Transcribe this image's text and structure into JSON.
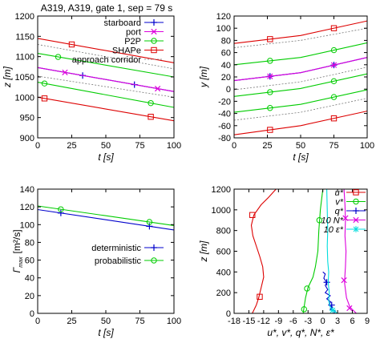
{
  "figure_title": "A319, A319, gate 1, sep = 79 s",
  "chart_data": [
    {
      "id": "tl",
      "type": "line",
      "xlim": [
        0,
        100
      ],
      "ylim": [
        900,
        1200
      ],
      "xticks": [
        0,
        25,
        50,
        75,
        100
      ],
      "xtick_labels": [
        "0",
        "25",
        "50",
        "75",
        "100"
      ],
      "yticks": [
        900,
        950,
        1000,
        1050,
        1100,
        1150,
        1200
      ],
      "ytick_labels": [
        "900",
        "950",
        "1000",
        "1050",
        "1100",
        "1150",
        "1200"
      ],
      "xlabel": "t  [s]",
      "ylabel": "z  [m]",
      "grid": false,
      "legend_position": "top-right",
      "series": [
        {
          "name": "starboard",
          "color": "#0000cc",
          "marker": "plus",
          "x": [
            0,
            100
          ],
          "y": [
            1073,
            1014
          ],
          "marker_x": [
            33,
            71
          ]
        },
        {
          "name": "port",
          "color": "#dd00dd",
          "marker": "cross",
          "x": [
            0,
            100
          ],
          "y": [
            1073,
            1014
          ],
          "marker_x": [
            20,
            88
          ]
        },
        {
          "name": "P2P",
          "color": "#00cc00",
          "marker": "circle",
          "x": [
            0,
            100
          ],
          "y": [
            1037,
            975
          ],
          "marker_x": [
            5,
            83
          ]
        },
        {
          "name": "SHAPe",
          "color": "#dd0000",
          "marker": "square",
          "x": [
            0,
            100
          ],
          "y": [
            1000,
            942
          ],
          "marker_x": [
            5,
            83
          ]
        },
        {
          "name": "approach corridor",
          "color": "#777777",
          "dash": true,
          "x": [
            0,
            100
          ],
          "y": [
            1130,
            1070
          ],
          "marker_x": []
        },
        {
          "color": "#dd0000",
          "marker": "square",
          "x": [
            0,
            100
          ],
          "y": [
            1145,
            1085
          ],
          "marker_x": [
            25
          ]
        },
        {
          "color": "#00cc00",
          "marker": "circle",
          "x": [
            0,
            100
          ],
          "y": [
            1108,
            1050
          ],
          "marker_x": [
            15
          ]
        },
        {
          "color": "#777777",
          "dash": true,
          "x": [
            0,
            100
          ],
          "y": [
            1052,
            1000
          ],
          "marker_x": []
        }
      ]
    },
    {
      "id": "tr",
      "type": "line",
      "xlim": [
        0,
        100
      ],
      "ylim": [
        -80,
        120
      ],
      "xticks": [
        0,
        25,
        50,
        75,
        100
      ],
      "xtick_labels": [
        "0",
        "25",
        "50",
        "75",
        "100"
      ],
      "yticks": [
        -80,
        -60,
        -40,
        -20,
        0,
        20,
        40,
        60,
        80,
        100,
        120
      ],
      "ytick_labels": [
        "-80",
        "-60",
        "-40",
        "-20",
        "0",
        "20",
        "40",
        "60",
        "80",
        "100",
        "120"
      ],
      "xlabel": "t  [s]",
      "ylabel": "y  [m]",
      "grid": false,
      "series": [
        {
          "color": "#dd0000",
          "marker": "square",
          "x": [
            0,
            50,
            100
          ],
          "y": [
            75,
            88,
            112
          ],
          "marker_x": [
            27,
            75
          ]
        },
        {
          "color": "#00cc00",
          "marker": "circle",
          "x": [
            0,
            50,
            100
          ],
          "y": [
            40,
            52,
            76
          ],
          "marker_x": [
            27,
            75
          ]
        },
        {
          "color": "#0000cc",
          "marker": "plus",
          "x": [
            0,
            50,
            100
          ],
          "y": [
            14,
            27,
            52
          ],
          "marker_x": [
            27,
            75
          ]
        },
        {
          "color": "#dd00dd",
          "marker": "cross",
          "x": [
            0,
            50,
            100
          ],
          "y": [
            14,
            27,
            52
          ],
          "marker_x": [
            27,
            75
          ]
        },
        {
          "color": "#00cc00",
          "marker": "circle",
          "x": [
            0,
            50,
            100
          ],
          "y": [
            -12,
            1,
            25
          ],
          "marker_x": [
            27,
            75
          ]
        },
        {
          "color": "#00cc00",
          "marker": "circle",
          "x": [
            0,
            50,
            100
          ],
          "y": [
            -38,
            -25,
            -1
          ],
          "marker_x": [
            27,
            75
          ]
        },
        {
          "color": "#dd0000",
          "marker": "square",
          "x": [
            0,
            50,
            100
          ],
          "y": [
            -75,
            -60,
            -36
          ],
          "marker_x": [
            27,
            75
          ]
        },
        {
          "color": "#777777",
          "dash": true,
          "x": [
            0,
            50,
            100
          ],
          "y": [
            68,
            80,
            100
          ],
          "marker_x": []
        },
        {
          "color": "#777777",
          "dash": true,
          "x": [
            0,
            50,
            100
          ],
          "y": [
            -1,
            12,
            36
          ],
          "marker_x": []
        },
        {
          "color": "#777777",
          "dash": true,
          "x": [
            0,
            50,
            100
          ],
          "y": [
            -51,
            -38,
            -15
          ],
          "marker_x": []
        }
      ]
    },
    {
      "id": "bl",
      "type": "line",
      "xlim": [
        0,
        100
      ],
      "ylim": [
        0,
        140
      ],
      "xticks": [
        0,
        25,
        50,
        75,
        100
      ],
      "xtick_labels": [
        "0",
        "25",
        "50",
        "75",
        "100"
      ],
      "yticks": [
        0,
        20,
        40,
        60,
        80,
        100,
        120,
        140
      ],
      "ytick_labels": [
        "0",
        "20",
        "40",
        "60",
        "80",
        "100",
        "120",
        "140"
      ],
      "xlabel": "t  [s]",
      "ylabel_main": "Γ",
      "ylabel_sub": "max",
      "ylabel_unit": "[m²/s]",
      "grid": false,
      "legend_position": "bottom-right",
      "series": [
        {
          "name": "deterministic",
          "color": "#0000cc",
          "marker": "plus",
          "x": [
            0,
            100
          ],
          "y": [
            117,
            94
          ],
          "marker_x": [
            17,
            82
          ]
        },
        {
          "name": "probabilistic",
          "color": "#00cc00",
          "marker": "circle",
          "x": [
            0,
            100
          ],
          "y": [
            121,
            99
          ],
          "marker_x": [
            17,
            82
          ]
        }
      ]
    },
    {
      "id": "br",
      "type": "line",
      "xlim": [
        -18,
        9
      ],
      "ylim": [
        0,
        1200
      ],
      "xticks": [
        -18,
        -15,
        -12,
        -9,
        -6,
        -3,
        0,
        3,
        6,
        9
      ],
      "xtick_labels": [
        "-18",
        "-15",
        "-12",
        "-9",
        "-6",
        "-3",
        "0",
        "3",
        "6",
        "9"
      ],
      "yticks": [
        0,
        200,
        400,
        600,
        800,
        1000,
        1200
      ],
      "ytick_labels": [
        "0",
        "200",
        "400",
        "600",
        "800",
        "1000",
        "1200"
      ],
      "xlabel": "u*, v*, q*, N*, ε*",
      "ylabel": "z  [m]",
      "grid": false,
      "legend_position": "top-right",
      "series": [
        {
          "name": "u*",
          "color": "#dd0000",
          "marker": "square",
          "x": [
            -9.5,
            -11,
            -12.5,
            -14,
            -14.5,
            -14.2,
            -13.5,
            -12.8,
            -12.2,
            -12,
            -12.5,
            -13,
            -13.5,
            -14,
            -14.3
          ],
          "y": [
            1200,
            1120,
            1050,
            950,
            850,
            750,
            650,
            550,
            450,
            350,
            250,
            150,
            80,
            30,
            0
          ],
          "marker_x": [
            -14.3,
            -12.8
          ],
          "marker_y": [
            950,
            160
          ]
        },
        {
          "name": "v*",
          "color": "#00cc00",
          "marker": "circle",
          "x": [
            0,
            -0.5,
            -0.8,
            -1,
            -1.5,
            -2,
            -3,
            -3.5,
            -3.8,
            -4
          ],
          "y": [
            1200,
            1000,
            800,
            600,
            450,
            350,
            250,
            150,
            60,
            0
          ],
          "marker_x": [
            -0.7,
            -3.2,
            -3.8
          ],
          "marker_y": [
            900,
            240,
            40
          ]
        },
        {
          "name": "q*",
          "color": "#0000cc",
          "marker": "plus",
          "x": [
            0,
            0.5,
            0.2,
            0.8,
            0.5,
            1,
            0.5,
            1.5,
            0.8,
            1.6,
            1.2,
            2,
            1.5,
            2.5,
            2.2
          ],
          "y": [
            400,
            380,
            340,
            300,
            270,
            230,
            200,
            170,
            140,
            110,
            80,
            60,
            40,
            20,
            0
          ],
          "marker_x": [
            0.8,
            1.8
          ],
          "marker_y": [
            300,
            80
          ]
        },
        {
          "name": "10 N*",
          "color": "#dd00dd",
          "marker": "cross",
          "x": [
            4.3,
            4.5,
            4.6,
            4.5,
            4.7,
            4.6,
            4.4,
            4.8,
            5.5,
            6.8
          ],
          "y": [
            1200,
            1050,
            900,
            750,
            600,
            450,
            300,
            150,
            60,
            0
          ],
          "marker_x": [
            4.6,
            4.3,
            5.4
          ],
          "marker_y": [
            920,
            320,
            50
          ]
        },
        {
          "name": "10 ε*",
          "color": "#00dddd",
          "marker": "star",
          "x": [
            0.8,
            0.9,
            1,
            0.9,
            1,
            1.2,
            1.1,
            1.3,
            1.2,
            1.5,
            2,
            3
          ],
          "y": [
            1200,
            1000,
            800,
            650,
            500,
            400,
            300,
            200,
            120,
            60,
            30,
            0
          ],
          "marker_x": [
            2
          ],
          "marker_y": [
            30
          ]
        }
      ]
    }
  ]
}
